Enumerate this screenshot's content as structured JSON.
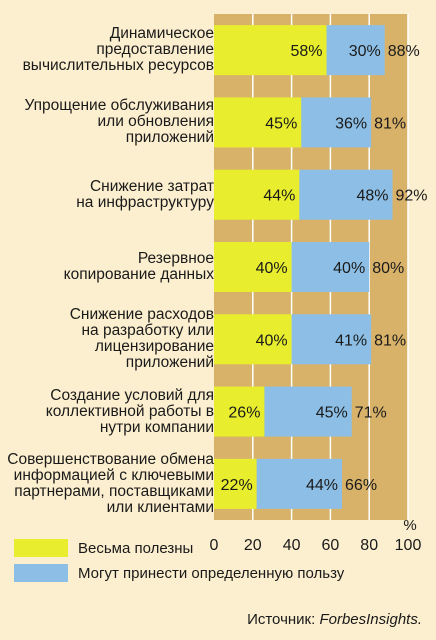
{
  "chart_data": {
    "type": "bar",
    "stacked": true,
    "orientation": "horizontal",
    "categories": [
      "Динамическое предоставление вычислительных ресурсов",
      "Упрощение обслуживания или обновления приложений",
      "Снижение затрат на инфраструктуру",
      "Резервное копирование данных",
      "Снижение расходов на разработку или лицензирование приложений",
      "Создание условий для коллективной работы в нутри компании",
      "Совершенствование обмена информацией с ключевыми партнерами, поставщиками или клиентами"
    ],
    "category_lines": [
      [
        "Динамическое",
        "предоставление",
        "вычислительных ресурсов"
      ],
      [
        "Упрощение обслуживания",
        "или обновления",
        "приложений"
      ],
      [
        "Снижение затрат",
        "на инфраструктуру"
      ],
      [
        "Резервное",
        "копирование данных"
      ],
      [
        "Снижение расходов",
        "на разработку или",
        "лицензирование",
        "приложений"
      ],
      [
        "Создание условий для",
        "коллективной работы в",
        "нутри компании"
      ],
      [
        "Совершенствование обмена",
        "информацией с ключевыми",
        "партнерами, поставщиками",
        "или клиентами"
      ]
    ],
    "series": [
      {
        "name": "Весьма полезны",
        "values": [
          58,
          45,
          44,
          40,
          40,
          26,
          22
        ],
        "color": "#e8ee2e"
      },
      {
        "name": "Могут принести определенную пользу",
        "values": [
          30,
          36,
          48,
          40,
          41,
          45,
          44
        ],
        "color": "#8dbfe6"
      }
    ],
    "totals": [
      88,
      81,
      92,
      80,
      81,
      71,
      66
    ],
    "xlim": [
      0,
      100
    ],
    "xticks": [
      0,
      20,
      40,
      60,
      80,
      100
    ],
    "xunit": "%",
    "grid": true,
    "plot_bg": "#d9b26a",
    "grid_color": "#ffffff"
  },
  "source": {
    "prefix": "Источник: ",
    "brand": "ForbesInsights."
  }
}
